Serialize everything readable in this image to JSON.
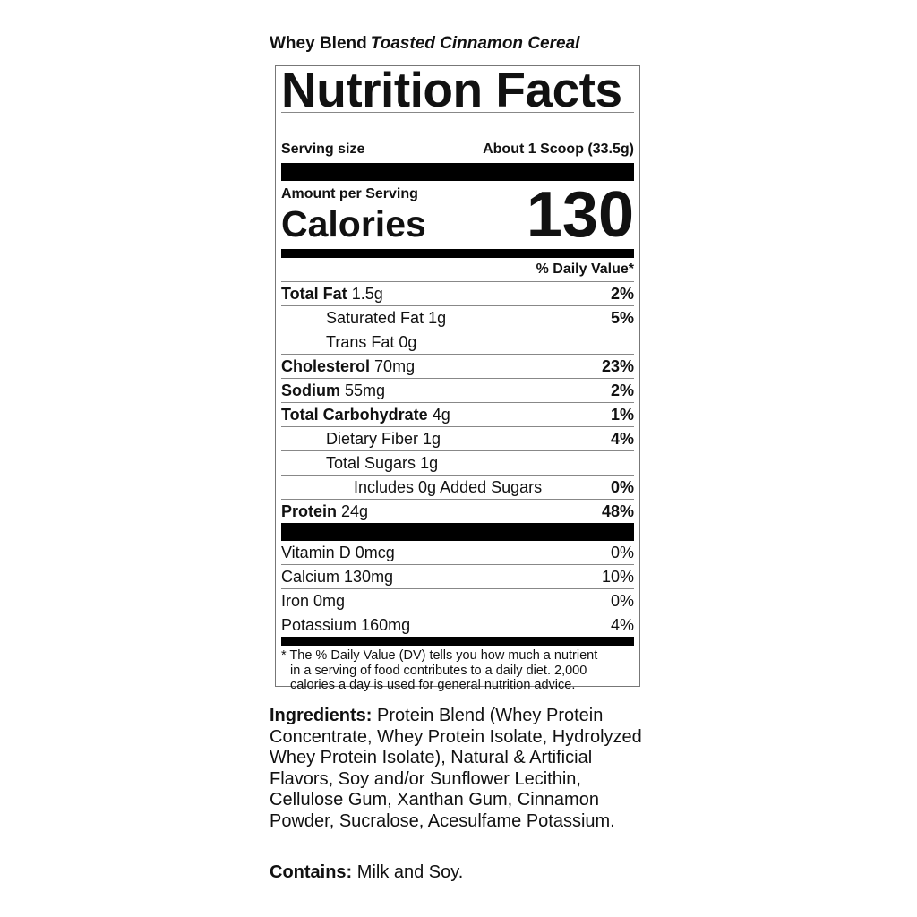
{
  "product": {
    "brand": "Whey Blend",
    "flavor": "Toasted Cinnamon Cereal"
  },
  "label": {
    "title": "Nutrition Facts",
    "serving_label": "Serving size",
    "serving_value": "About 1 Scoop (33.5g)",
    "amount_per_serving": "Amount per Serving",
    "calories_label": "Calories",
    "calories_value": "130",
    "dv_header": "% Daily Value*",
    "nutrients": [
      {
        "name": "Total Fat",
        "amount": "1.5g",
        "dv": "2%",
        "bold": true,
        "indent": 0
      },
      {
        "name": "Saturated Fat",
        "amount": "1g",
        "dv": "5%",
        "bold": false,
        "indent": 1
      },
      {
        "name": "Trans Fat",
        "amount": "0g",
        "dv": "",
        "bold": false,
        "indent": 1
      },
      {
        "name": "Cholesterol",
        "amount": "70mg",
        "dv": "23%",
        "bold": true,
        "indent": 0
      },
      {
        "name": "Sodium",
        "amount": "55mg",
        "dv": "2%",
        "bold": true,
        "indent": 0
      },
      {
        "name": "Total Carbohydrate",
        "amount": "4g",
        "dv": "1%",
        "bold": true,
        "indent": 0
      },
      {
        "name": "Dietary Fiber",
        "amount": "1g",
        "dv": "4%",
        "bold": false,
        "indent": 1
      },
      {
        "name": "Total Sugars",
        "amount": "1g",
        "dv": "",
        "bold": false,
        "indent": 1
      },
      {
        "name": "Includes 0g Added Sugars",
        "amount": "",
        "dv": "0%",
        "bold": false,
        "indent": 2
      },
      {
        "name": "Protein",
        "amount": "24g",
        "dv": "48%",
        "bold": true,
        "indent": 0
      }
    ],
    "vitamins": [
      {
        "name": "Vitamin D",
        "amount": "0mcg",
        "dv": "0%"
      },
      {
        "name": "Calcium",
        "amount": "130mg",
        "dv": "10%"
      },
      {
        "name": "Iron",
        "amount": "0mg",
        "dv": "0%"
      },
      {
        "name": "Potassium",
        "amount": "160mg",
        "dv": "4%"
      }
    ],
    "footnote_line1": "* The % Daily Value (DV) tells you how much a nutrient",
    "footnote_line2": "in a serving of food contributes to a daily diet. 2,000",
    "footnote_line3": "calories a  day is used for general nutrition advice."
  },
  "ingredients": {
    "label": "Ingredients:",
    "text": "Protein Blend (Whey Protein Concentrate, Whey Protein Isolate, Hydrolyzed Whey Protein Isolate), Natural & Artificial Flavors, Soy and/or Sunflower Lecithin, Cellulose Gum, Xanthan Gum, Cinnamon Powder, Sucralose, Acesulfame Potassium."
  },
  "contains": {
    "label": "Contains:",
    "text": "Milk and Soy."
  }
}
